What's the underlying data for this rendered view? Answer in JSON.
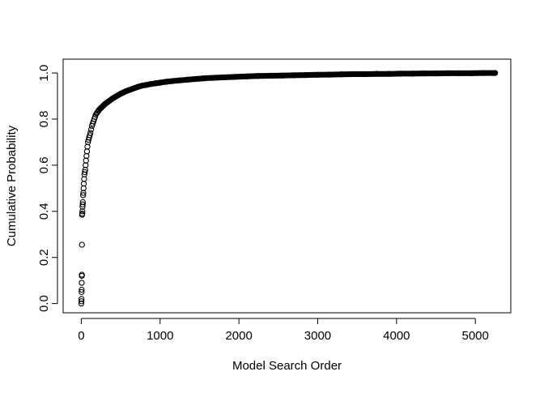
{
  "chart_data": {
    "type": "scatter",
    "title": "",
    "xlabel": "Model Search Order",
    "ylabel": "Cumulative Probability",
    "xlim": [
      -230,
      5450
    ],
    "ylim": [
      -0.04,
      1.06
    ],
    "x_ticks": [
      0,
      1000,
      2000,
      3000,
      4000,
      5000
    ],
    "x_tick_labels": [
      "0",
      "1000",
      "2000",
      "3000",
      "4000",
      "5000"
    ],
    "y_ticks": [
      0.0,
      0.2,
      0.4,
      0.6,
      0.8,
      1.0
    ],
    "y_tick_labels": [
      "0.0",
      "0.2",
      "0.4",
      "0.6",
      "0.8",
      "1.0"
    ],
    "grid": false,
    "legend": "none",
    "marker": "open-circle",
    "color": "#000000",
    "x": [
      1,
      2,
      3,
      4,
      5,
      6,
      7,
      8,
      9,
      10,
      12,
      14,
      16,
      18,
      20,
      23,
      26,
      29,
      32,
      36,
      40,
      45,
      50,
      55,
      60,
      66,
      72,
      78,
      85,
      92,
      100,
      108,
      116,
      125,
      135,
      145,
      155,
      165,
      175,
      185,
      195,
      205,
      215,
      225,
      240,
      255,
      270,
      285,
      300,
      320,
      340,
      360,
      380,
      400,
      425,
      450,
      475,
      500,
      530,
      560,
      600,
      640,
      680,
      720,
      770,
      820,
      880,
      940,
      1000,
      1080,
      1160,
      1250,
      1350,
      1450,
      1560,
      1680,
      1800,
      1950,
      2100,
      2250,
      2400,
      2550,
      2700,
      2850,
      3000,
      3150,
      3300,
      3450,
      3600,
      3750,
      3900,
      4050,
      4200,
      4350,
      4500,
      4650,
      4800,
      4950,
      5100,
      5250
    ],
    "y": [
      0.0,
      0.01,
      0.02,
      0.05,
      0.06,
      0.09,
      0.12,
      0.125,
      0.255,
      0.385,
      0.39,
      0.4,
      0.42,
      0.43,
      0.44,
      0.47,
      0.48,
      0.5,
      0.52,
      0.54,
      0.56,
      0.57,
      0.58,
      0.6,
      0.62,
      0.64,
      0.66,
      0.68,
      0.7,
      0.71,
      0.72,
      0.73,
      0.74,
      0.755,
      0.77,
      0.78,
      0.79,
      0.8,
      0.81,
      0.82,
      0.825,
      0.83,
      0.835,
      0.84,
      0.845,
      0.85,
      0.855,
      0.86,
      0.865,
      0.87,
      0.875,
      0.88,
      0.885,
      0.89,
      0.895,
      0.9,
      0.905,
      0.91,
      0.915,
      0.92,
      0.925,
      0.93,
      0.935,
      0.94,
      0.945,
      0.948,
      0.952,
      0.955,
      0.958,
      0.962,
      0.965,
      0.968,
      0.971,
      0.974,
      0.977,
      0.979,
      0.981,
      0.983,
      0.985,
      0.987,
      0.988,
      0.989,
      0.99,
      0.991,
      0.992,
      0.993,
      0.994,
      0.995,
      0.995,
      0.996,
      0.996,
      0.997,
      0.997,
      0.998,
      0.998,
      0.999,
      0.999,
      0.999,
      1.0,
      1.0
    ]
  }
}
